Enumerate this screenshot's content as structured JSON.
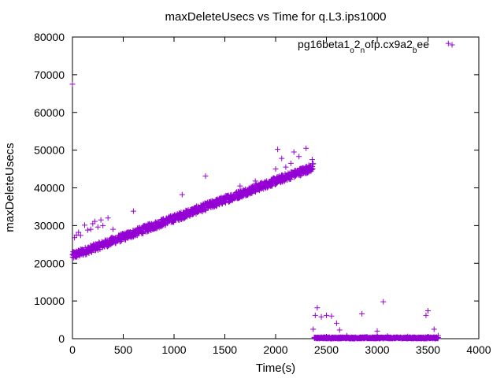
{
  "chart_data": {
    "type": "scatter",
    "title": "maxDeleteUsecs vs Time for q.L3.ips1000",
    "xlabel": "Time(s)",
    "ylabel": "maxDeleteUsecs",
    "xlim": [
      0,
      4000
    ],
    "ylim": [
      0,
      80000
    ],
    "xticks": [
      "0",
      "500",
      "1000",
      "1500",
      "2000",
      "2500",
      "3000",
      "3500",
      "4000"
    ],
    "yticks": [
      "0",
      "10000",
      "20000",
      "30000",
      "40000",
      "50000",
      "60000",
      "70000",
      "80000"
    ],
    "grid": false,
    "legend_position": "top-right",
    "marker": "plus",
    "series": [
      {
        "name": "pg16beta1_o2_nofp.cx9a2_bee",
        "color": "#9400d3",
        "segments": [
          {
            "x_range": [
              0,
              2370
            ],
            "y_range": [
              22000,
              45500
            ],
            "trend": "linear increase",
            "spread": 2000
          },
          {
            "x_range": [
              2380,
              3600
            ],
            "y_range": [
              0,
              700
            ],
            "trend": "flat near zero",
            "spread": 400
          }
        ],
        "points": [
          [
            0,
            67500
          ],
          [
            10,
            22000
          ],
          [
            20,
            26800
          ],
          [
            40,
            27500
          ],
          [
            60,
            28200
          ],
          [
            80,
            27400
          ],
          [
            120,
            30100
          ],
          [
            150,
            28800
          ],
          [
            180,
            29000
          ],
          [
            200,
            30500
          ],
          [
            220,
            31100
          ],
          [
            250,
            29600
          ],
          [
            280,
            31500
          ],
          [
            300,
            30000
          ],
          [
            350,
            32000
          ],
          [
            400,
            29000
          ],
          [
            600,
            33800
          ],
          [
            1080,
            38200
          ],
          [
            1310,
            43100
          ],
          [
            1650,
            40500
          ],
          [
            1800,
            41800
          ],
          [
            2000,
            45000
          ],
          [
            2020,
            50200
          ],
          [
            2060,
            47800
          ],
          [
            2100,
            45500
          ],
          [
            2150,
            46500
          ],
          [
            2180,
            49500
          ],
          [
            2230,
            48300
          ],
          [
            2300,
            50500
          ],
          [
            2360,
            47500
          ],
          [
            2370,
            2500
          ],
          [
            2390,
            6200
          ],
          [
            2410,
            8200
          ],
          [
            2450,
            5800
          ],
          [
            2500,
            6200
          ],
          [
            2550,
            6000
          ],
          [
            2600,
            4100
          ],
          [
            2630,
            2300
          ],
          [
            2700,
            800
          ],
          [
            2850,
            6600
          ],
          [
            2900,
            500
          ],
          [
            3000,
            2000
          ],
          [
            3060,
            9800
          ],
          [
            3100,
            700
          ],
          [
            3200,
            400
          ],
          [
            3300,
            600
          ],
          [
            3480,
            6200
          ],
          [
            3500,
            7400
          ],
          [
            3560,
            2500
          ],
          [
            3600,
            800
          ],
          [
            3700,
            78300
          ]
        ]
      }
    ]
  }
}
